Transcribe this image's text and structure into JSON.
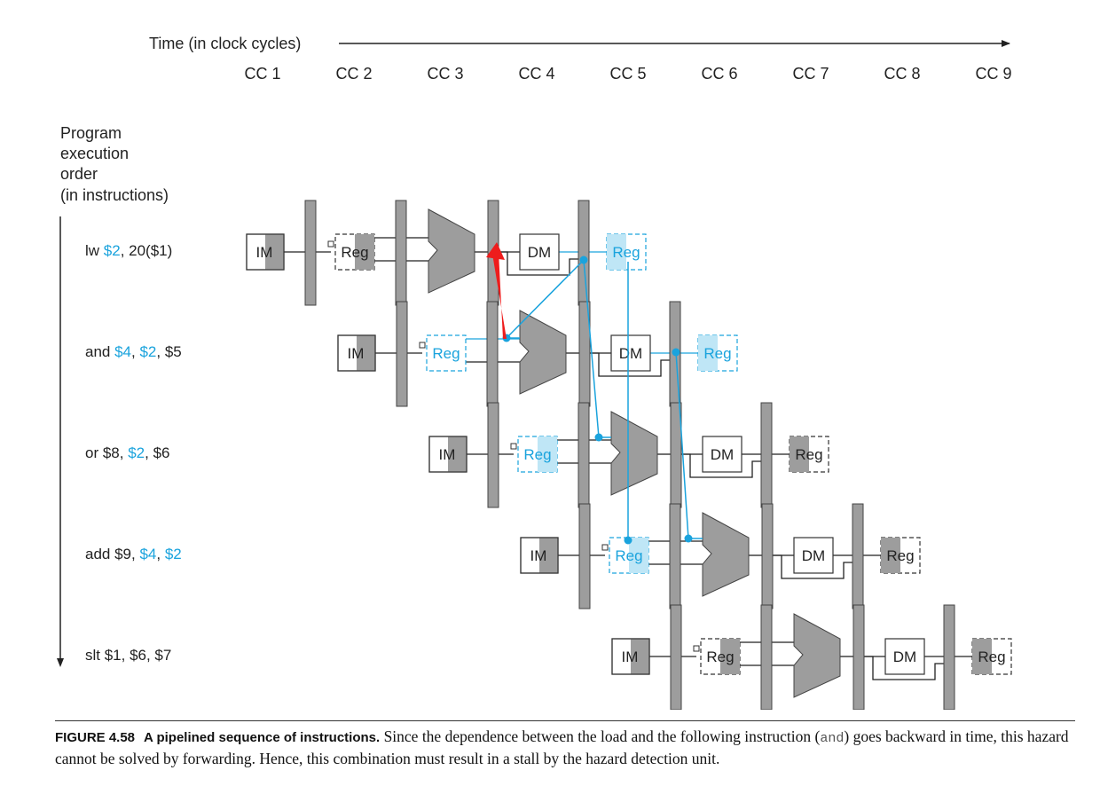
{
  "time_axis": {
    "label": "Time (in clock cycles)",
    "cycles": [
      "CC 1",
      "CC 2",
      "CC 3",
      "CC 4",
      "CC 5",
      "CC 6",
      "CC 7",
      "CC 8",
      "CC 9"
    ]
  },
  "order_label": [
    "Program",
    "execution",
    "order",
    "(in instructions)"
  ],
  "stage_labels": {
    "im": "IM",
    "reg": "Reg",
    "dm": "DM"
  },
  "instructions": [
    {
      "parts": [
        {
          "t": "lw ",
          "hl": false
        },
        {
          "t": "$2",
          "hl": true
        },
        {
          "t": ", 20($1)",
          "hl": false
        }
      ]
    },
    {
      "parts": [
        {
          "t": "and ",
          "hl": false
        },
        {
          "t": "$4",
          "hl": true
        },
        {
          "t": ", ",
          "hl": false
        },
        {
          "t": "$2",
          "hl": true
        },
        {
          "t": ", $5",
          "hl": false
        }
      ]
    },
    {
      "parts": [
        {
          "t": "or $8, ",
          "hl": false
        },
        {
          "t": "$2",
          "hl": true
        },
        {
          "t": ", $6",
          "hl": false
        }
      ]
    },
    {
      "parts": [
        {
          "t": "add $9, ",
          "hl": false
        },
        {
          "t": "$4",
          "hl": true
        },
        {
          "t": ", ",
          "hl": false
        },
        {
          "t": "$2",
          "hl": true
        }
      ]
    },
    {
      "parts": [
        {
          "t": "slt $1, $6, $7",
          "hl": false
        }
      ]
    }
  ],
  "caption": {
    "figure": "FIGURE 4.58",
    "title": "A pipelined sequence of instructions.",
    "text_before": " Since the dependence between the load and the following instruction (",
    "code": "and",
    "text_after": ") goes backward in time, this hazard cannot be solved by forwarding. Hence, this combination must result in a stall by the hazard detection unit."
  },
  "colors": {
    "highlight": "#1aa3dd",
    "highlight_fill": "#bfe6f6",
    "stage_gray": "#9d9d9d",
    "backward_arrow": "#ee1c1c",
    "text": "#222222"
  }
}
